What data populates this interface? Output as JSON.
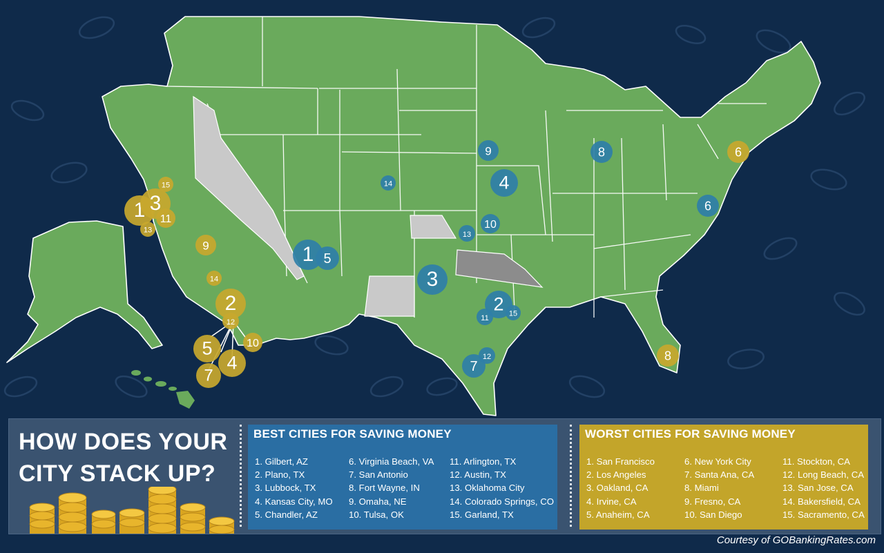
{
  "map": {
    "land_color": "#6aaa5c",
    "excluded_color": "#c9c9c9",
    "best_marker_color": "#2f7fa8",
    "worst_marker_color": "#c8a82e",
    "best_markers": [
      {
        "rank": "1",
        "city": "Gilbert, AZ"
      },
      {
        "rank": "2",
        "city": "Plano, TX"
      },
      {
        "rank": "3",
        "city": "Lubbock, TX"
      },
      {
        "rank": "4",
        "city": "Kansas City, MO"
      },
      {
        "rank": "5",
        "city": "Chandler, AZ"
      },
      {
        "rank": "6",
        "city": "Virginia Beach, VA"
      },
      {
        "rank": "7",
        "city": "San Antonio"
      },
      {
        "rank": "8",
        "city": "Fort Wayne, IN"
      },
      {
        "rank": "9",
        "city": "Omaha, NE"
      },
      {
        "rank": "10",
        "city": "Tulsa, OK"
      },
      {
        "rank": "11",
        "city": "Arlington, TX"
      },
      {
        "rank": "12",
        "city": "Austin, TX"
      },
      {
        "rank": "13",
        "city": "Oklahoma City"
      },
      {
        "rank": "14",
        "city": "Colorado Springs, CO"
      },
      {
        "rank": "15",
        "city": "Garland, TX"
      }
    ],
    "worst_markers": [
      {
        "rank": "1",
        "city": "San Francisco"
      },
      {
        "rank": "2",
        "city": "Los Angeles"
      },
      {
        "rank": "3",
        "city": "Oakland, CA"
      },
      {
        "rank": "4",
        "city": "Irvine, CA"
      },
      {
        "rank": "5",
        "city": "Anaheim, CA"
      },
      {
        "rank": "6",
        "city": "New York City"
      },
      {
        "rank": "7",
        "city": "Santa Ana, CA"
      },
      {
        "rank": "8",
        "city": "Miami"
      },
      {
        "rank": "9",
        "city": "Fresno, CA"
      },
      {
        "rank": "10",
        "city": "San Diego"
      },
      {
        "rank": "11",
        "city": "Stockton, CA"
      },
      {
        "rank": "12",
        "city": "Long Beach, CA"
      },
      {
        "rank": "13",
        "city": "San Jose, CA"
      },
      {
        "rank": "14",
        "city": "Bakersfield, CA"
      },
      {
        "rank": "15",
        "city": "Sacramento, CA"
      }
    ]
  },
  "panel": {
    "title": "HOW DOES YOUR CITY STACK UP?",
    "best_heading": "BEST CITIES FOR SAVING MONEY",
    "worst_heading": "WORST CITIES FOR SAVING MONEY",
    "best_list": [
      "1. Gilbert, AZ",
      "2. Plano, TX",
      "3. Lubbock, TX",
      "4. Kansas City, MO",
      "5. Chandler, AZ",
      "6. Virginia Beach, VA",
      "7. San Antonio",
      "8. Fort Wayne, IN",
      "9. Omaha, NE",
      "10. Tulsa, OK",
      "11. Arlington, TX",
      "12. Austin, TX",
      "13. Oklahoma City",
      "14. Colorado Springs, CO",
      "15. Garland, TX"
    ],
    "worst_list": [
      "1. San Francisco",
      "2. Los Angeles",
      "3. Oakland, CA",
      "4. Irvine, CA",
      "5. Anaheim, CA",
      "6. New York City",
      "7. Santa Ana, CA",
      "8. Miami",
      "9. Fresno, CA",
      "10. San Diego",
      "11. Stockton, CA",
      "12. Long Beach, CA",
      "13. San Jose, CA",
      "14. Bakersfield, CA",
      "15. Sacramento, CA"
    ]
  },
  "credit": "Courtesy of GOBankingRates.com"
}
